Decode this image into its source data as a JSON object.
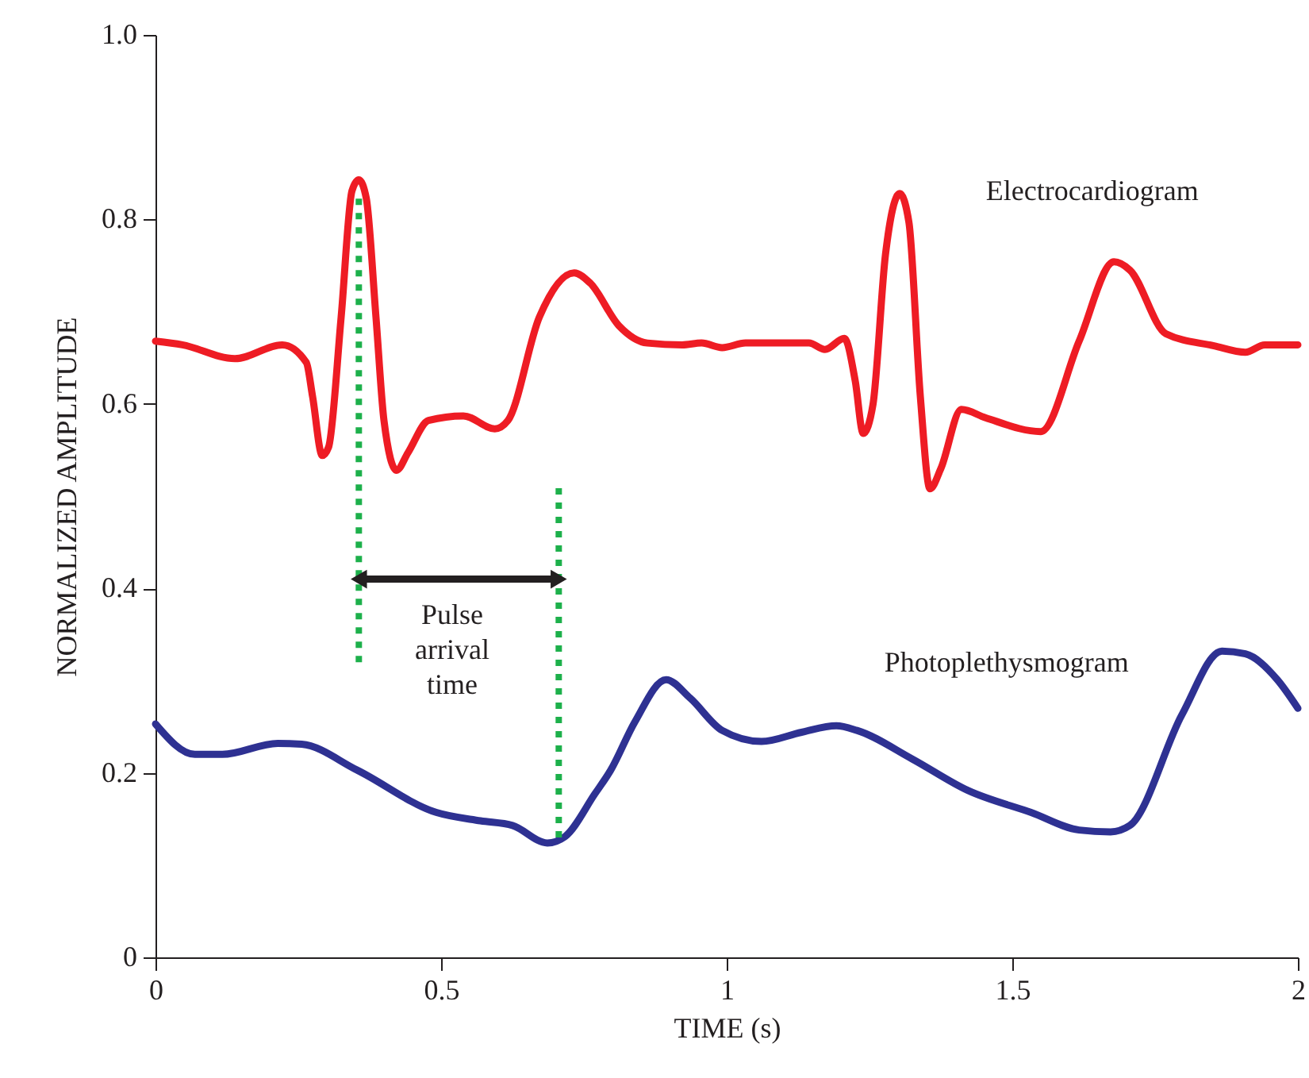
{
  "chart_data": {
    "type": "line",
    "xlabel": "TIME (s)",
    "ylabel": "NORMALIZED AMPLITUDE",
    "xlim": [
      0,
      2
    ],
    "ylim": [
      0,
      1
    ],
    "xticks": [
      0,
      0.5,
      1,
      1.5,
      2
    ],
    "yticks": [
      0,
      0.2,
      0.4,
      0.6,
      0.8,
      {
        "value": 1,
        "label": "1.0"
      }
    ],
    "grid": false,
    "line_style": "solid",
    "marker": "none",
    "annotations": [
      "Pulse arrival time"
    ],
    "series": [
      {
        "name": "Electrocardiogram",
        "color": "#ee1c24",
        "x": [
          0,
          0.047,
          0.139,
          0.222,
          0.264,
          0.275,
          0.292,
          0.303,
          0.325,
          0.344,
          0.356,
          0.369,
          0.386,
          0.4,
          0.422,
          0.442,
          0.478,
          0.539,
          0.594,
          0.617,
          0.672,
          0.733,
          0.761,
          0.811,
          0.861,
          0.922,
          0.956,
          0.992,
          1.033,
          1.144,
          1.172,
          1.206,
          1.225,
          1.239,
          1.256,
          1.278,
          1.303,
          1.319,
          1.339,
          1.356,
          1.375,
          1.411,
          1.453,
          1.55,
          1.617,
          1.678,
          1.706,
          1.769,
          1.853,
          1.908,
          1.942,
          2
        ],
        "values": [
          0.668,
          0.664,
          0.649,
          0.664,
          0.645,
          0.608,
          0.544,
          0.553,
          0.694,
          0.831,
          0.843,
          0.823,
          0.694,
          0.582,
          0.528,
          0.547,
          0.582,
          0.587,
          0.573,
          0.582,
          0.694,
          0.742,
          0.731,
          0.685,
          0.666,
          0.664,
          0.666,
          0.661,
          0.666,
          0.666,
          0.659,
          0.671,
          0.625,
          0.568,
          0.599,
          0.762,
          0.828,
          0.797,
          0.608,
          0.508,
          0.53,
          0.594,
          0.585,
          0.57,
          0.668,
          0.754,
          0.745,
          0.676,
          0.663,
          0.656,
          0.664,
          0.664
        ]
      },
      {
        "name": "Photoplethysmogram",
        "color": "#2e3192",
        "x": [
          0,
          0.069,
          0.117,
          0.214,
          0.256,
          0.353,
          0.492,
          0.569,
          0.625,
          0.686,
          0.717,
          0.769,
          0.797,
          0.839,
          0.894,
          0.936,
          0.992,
          1.061,
          1.131,
          1.192,
          1.228,
          1.325,
          1.422,
          1.533,
          1.617,
          1.672,
          1.706,
          1.797,
          1.867,
          1.908,
          1.964,
          2
        ],
        "values": [
          0.253,
          0.22,
          0.22,
          0.232,
          0.231,
          0.203,
          0.157,
          0.148,
          0.143,
          0.124,
          0.131,
          0.177,
          0.203,
          0.255,
          0.301,
          0.281,
          0.246,
          0.234,
          0.244,
          0.251,
          0.246,
          0.215,
          0.181,
          0.157,
          0.138,
          0.136,
          0.143,
          0.263,
          0.332,
          0.329,
          0.301,
          0.27
        ]
      },
      {
        "color": "#1db04b",
        "line_style": "dotted",
        "x": [
          0.356,
          0.356
        ],
        "values": [
          0.32,
          0.83
        ]
      },
      {
        "color": "#1db04b",
        "line_style": "dotted",
        "x": [
          0.706,
          0.706
        ],
        "values": [
          0.13,
          0.51
        ]
      },
      {
        "color": "#231f20",
        "marker": "triangle",
        "x": [
          0.356,
          0.706
        ],
        "values": [
          0.41,
          0.41
        ]
      }
    ]
  }
}
